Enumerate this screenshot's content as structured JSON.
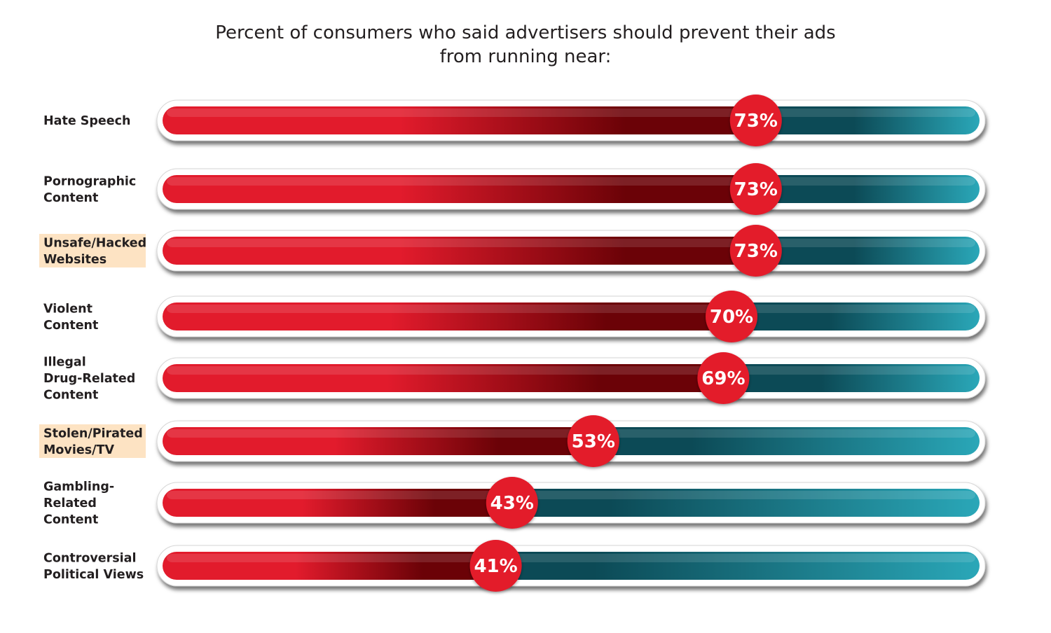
{
  "chart_data": {
    "type": "bar",
    "title": "Percent of consumers who said advertisers should prevent their ads from running near:",
    "title_lines": [
      "Percent of consumers who said advertisers should prevent their ads",
      "from running near:"
    ],
    "unit": "%",
    "xlim": [
      0,
      100
    ],
    "categories": [
      "Hate Speech",
      "Pornographic Content",
      "Unsafe/Hacked Websites",
      "Violent Content",
      "Illegal Drug-Related Content",
      "Stolen/Pirated Movies/TV",
      "Gambling-Related Content",
      "Controversial Political Views"
    ],
    "category_label_lines": [
      [
        "Hate Speech"
      ],
      [
        "Pornographic",
        "Content"
      ],
      [
        "Unsafe/Hacked",
        "Websites"
      ],
      [
        "Violent",
        "Content"
      ],
      [
        "Illegal",
        "Drug-Related",
        "Content"
      ],
      [
        "Stolen/Pirated",
        "Movies/TV"
      ],
      [
        "Gambling-",
        "Related",
        "Content"
      ],
      [
        "Controversial",
        "Political Views"
      ]
    ],
    "highlighted": [
      false,
      false,
      true,
      false,
      false,
      true,
      false,
      false
    ],
    "values": [
      73,
      73,
      73,
      70,
      69,
      53,
      43,
      41
    ],
    "value_labels": [
      "73%",
      "73%",
      "73%",
      "70%",
      "69%",
      "53%",
      "43%",
      "41%"
    ],
    "grid": false,
    "legend": "none"
  },
  "colors": {
    "fill_light_red": "#e21b2c",
    "fill_dark_red": "#6b0207",
    "remainder_dark_teal": "#0c4a56",
    "remainder_light_teal": "#2aa7b8",
    "marker_red": "#e31a2b",
    "highlight": "#fde3c3",
    "text": "#231f20"
  }
}
